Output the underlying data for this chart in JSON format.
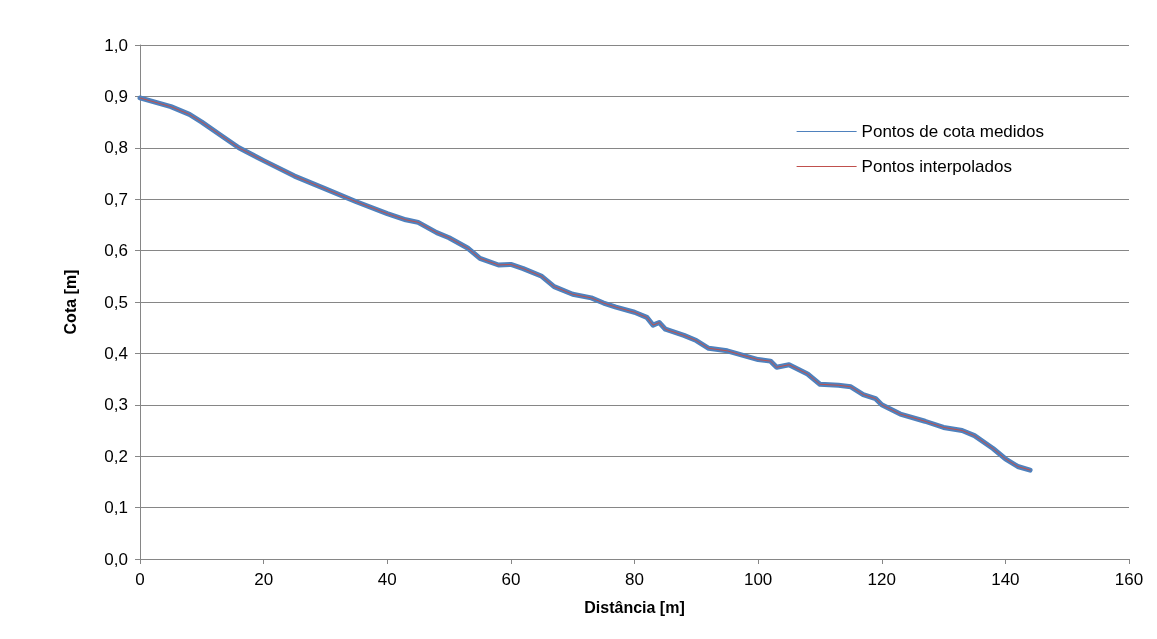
{
  "chart_data": {
    "type": "line",
    "xlabel": "Distância [m]",
    "ylabel": "Cota [m]",
    "xlim": [
      0,
      160
    ],
    "xticks": [
      0,
      20,
      40,
      60,
      80,
      100,
      120,
      140,
      160
    ],
    "ylim": [
      0,
      1
    ],
    "yticks": [
      {
        "value": 0,
        "label": "0,0"
      },
      {
        "value": 0.1,
        "label": "0,1"
      },
      {
        "value": 0.2,
        "label": "0,2"
      },
      {
        "value": 0.3,
        "label": "0,3"
      },
      {
        "value": 0.4,
        "label": "0,4"
      },
      {
        "value": 0.5,
        "label": "0,5"
      },
      {
        "value": 0.6,
        "label": "0,6"
      },
      {
        "value": 0.7,
        "label": "0,7"
      },
      {
        "value": 0.8,
        "label": "0,8"
      },
      {
        "value": 0.9,
        "label": "0,9"
      },
      {
        "value": 1,
        "label": "1,0"
      }
    ],
    "grid": "y",
    "legend": "top right",
    "marker": "none",
    "line_style": "solid",
    "x": [
      0,
      5,
      8,
      10,
      13,
      16,
      20,
      25,
      30,
      35,
      40,
      43,
      45,
      48,
      50,
      53,
      55,
      58,
      60,
      62,
      65,
      67,
      70,
      73,
      75,
      77,
      80,
      82,
      83,
      84,
      85,
      88,
      90,
      92,
      95,
      97,
      100,
      102,
      103,
      105,
      108,
      110,
      113,
      115,
      117,
      119,
      120,
      123,
      127,
      130,
      133,
      135,
      138,
      140,
      142,
      144
    ],
    "series": [
      {
        "name": "Pontos de cota medidos",
        "color": "#4f81bd",
        "values": [
          0.897,
          0.88,
          0.865,
          0.85,
          0.825,
          0.8,
          0.775,
          0.745,
          0.72,
          0.695,
          0.672,
          0.66,
          0.655,
          0.635,
          0.625,
          0.605,
          0.585,
          0.572,
          0.573,
          0.565,
          0.55,
          0.53,
          0.515,
          0.508,
          0.498,
          0.49,
          0.48,
          0.47,
          0.455,
          0.46,
          0.447,
          0.435,
          0.425,
          0.41,
          0.405,
          0.398,
          0.388,
          0.385,
          0.373,
          0.378,
          0.36,
          0.34,
          0.338,
          0.335,
          0.32,
          0.312,
          0.3,
          0.282,
          0.268,
          0.256,
          0.25,
          0.24,
          0.215,
          0.195,
          0.18,
          0.173
        ]
      },
      {
        "name": "Pontos interpolados",
        "color": "#c0504d",
        "values": [
          0.897,
          0.88,
          0.865,
          0.85,
          0.825,
          0.8,
          0.775,
          0.745,
          0.72,
          0.695,
          0.672,
          0.66,
          0.655,
          0.635,
          0.625,
          0.605,
          0.585,
          0.572,
          0.573,
          0.565,
          0.55,
          0.53,
          0.515,
          0.508,
          0.498,
          0.49,
          0.48,
          0.47,
          0.455,
          0.46,
          0.447,
          0.435,
          0.425,
          0.41,
          0.405,
          0.398,
          0.388,
          0.385,
          0.373,
          0.378,
          0.36,
          0.34,
          0.338,
          0.335,
          0.32,
          0.312,
          0.3,
          0.282,
          0.268,
          0.256,
          0.25,
          0.24,
          0.215,
          0.195,
          0.18,
          0.173
        ]
      }
    ]
  }
}
